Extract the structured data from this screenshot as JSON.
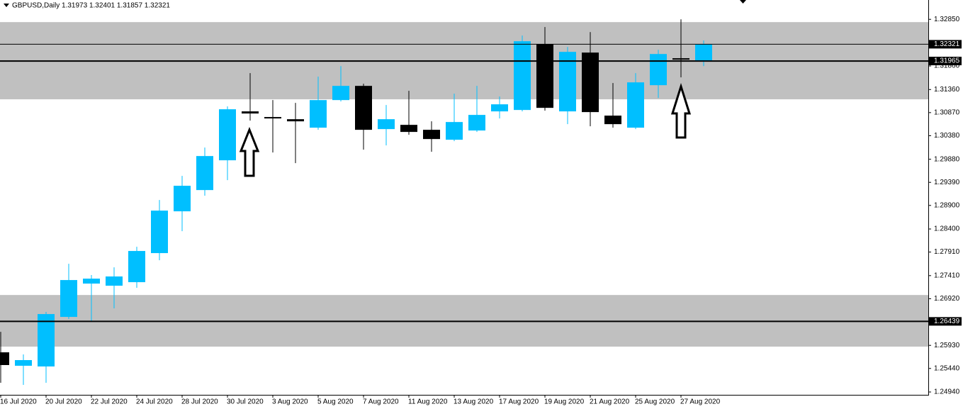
{
  "chart_data": {
    "type": "candlestick",
    "title": "GBPUSD,Daily  1.31973 1.32401 1.31857 1.32321",
    "categories": [
      "16 Jul 2020",
      null,
      "20 Jul 2020",
      null,
      "22 Jul 2020",
      null,
      "24 Jul 2020",
      null,
      "28 Jul 2020",
      null,
      "30 Jul 2020",
      null,
      "3 Aug 2020",
      null,
      "5 Aug 2020",
      null,
      "7 Aug 2020",
      null,
      "11 Aug 2020",
      null,
      "13 Aug 2020",
      null,
      "17 Aug 2020",
      null,
      "19 Aug 2020",
      null,
      "21 Aug 2020",
      null,
      "25 Aug 2020",
      null,
      "27 Aug 2020",
      null
    ],
    "open": [
      1.25782,
      1.25497,
      1.25482,
      1.26534,
      1.27241,
      1.27196,
      1.27271,
      1.27888,
      1.28775,
      1.29226,
      1.29858,
      1.30896,
      1.30776,
      1.3073,
      1.3055,
      1.31136,
      1.31437,
      1.3052,
      1.3061,
      1.30505,
      1.30294,
      1.3049,
      1.30896,
      1.30926,
      1.32325,
      1.30896,
      1.32144,
      1.30806,
      1.3055,
      1.31452,
      1.32024,
      1.31973
    ],
    "high": [
      1.26218,
      1.25737,
      1.2664,
      1.27662,
      1.27422,
      1.27587,
      1.28023,
      1.29016,
      1.29527,
      1.30129,
      1.31001,
      1.31708,
      1.31136,
      1.31076,
      1.31633,
      1.31858,
      1.31482,
      1.31031,
      1.31332,
      1.30685,
      1.31272,
      1.31437,
      1.31212,
      1.32505,
      1.32686,
      1.32264,
      1.3258,
      1.31497,
      1.31708,
      1.32204,
      1.3285,
      1.32401
    ],
    "low": [
      1.25136,
      1.2509,
      1.25136,
      1.26489,
      1.26444,
      1.26715,
      1.27151,
      1.27737,
      1.28354,
      1.29106,
      1.29437,
      1.307,
      1.30024,
      1.29798,
      1.30505,
      1.31106,
      1.30084,
      1.30174,
      1.304,
      1.30039,
      1.30264,
      1.3046,
      1.30745,
      1.30896,
      1.30911,
      1.30625,
      1.3058,
      1.3055,
      1.3052,
      1.31182,
      1.31618,
      1.31857
    ],
    "close": [
      1.25512,
      1.25617,
      1.26594,
      1.27316,
      1.27346,
      1.27392,
      1.27933,
      1.2879,
      1.29317,
      1.29948,
      1.30941,
      1.30851,
      1.3076,
      1.30685,
      1.31136,
      1.31437,
      1.30505,
      1.3073,
      1.3046,
      1.30309,
      1.3067,
      1.30821,
      1.31046,
      1.32385,
      1.30971,
      1.32159,
      1.30881,
      1.30625,
      1.31512,
      1.32114,
      1.31994,
      1.32321
    ],
    "up_color": "#00bfff",
    "down_color": "#000000",
    "ylim": [
      1.2488,
      1.3326
    ],
    "yticks": [
      {
        "value": 1.2494,
        "label": "1.24940"
      },
      {
        "value": 1.2544,
        "label": "1.25440"
      },
      {
        "value": 1.2593,
        "label": "1.25930"
      },
      {
        "value": 1.2692,
        "label": "1.26920"
      },
      {
        "value": 1.2741,
        "label": "1.27410"
      },
      {
        "value": 1.2791,
        "label": "1.27910"
      },
      {
        "value": 1.284,
        "label": "1.28400"
      },
      {
        "value": 1.289,
        "label": "1.28900"
      },
      {
        "value": 1.2939,
        "label": "1.29390"
      },
      {
        "value": 1.2988,
        "label": "1.29880"
      },
      {
        "value": 1.3038,
        "label": "1.30380"
      },
      {
        "value": 1.3087,
        "label": "1.30870"
      },
      {
        "value": 1.3136,
        "label": "1.31360"
      },
      {
        "value": 1.3186,
        "label": "1.31860"
      },
      {
        "value": 1.3285,
        "label": "1.32850"
      }
    ],
    "zones": [
      {
        "from": 1.31152,
        "to": 1.32791
      },
      {
        "from": 1.25903,
        "to": 1.26999
      }
    ],
    "zone_color": "#c0c0c0",
    "hlines": [
      1.32321,
      1.31965,
      1.26439
    ]
  }
}
